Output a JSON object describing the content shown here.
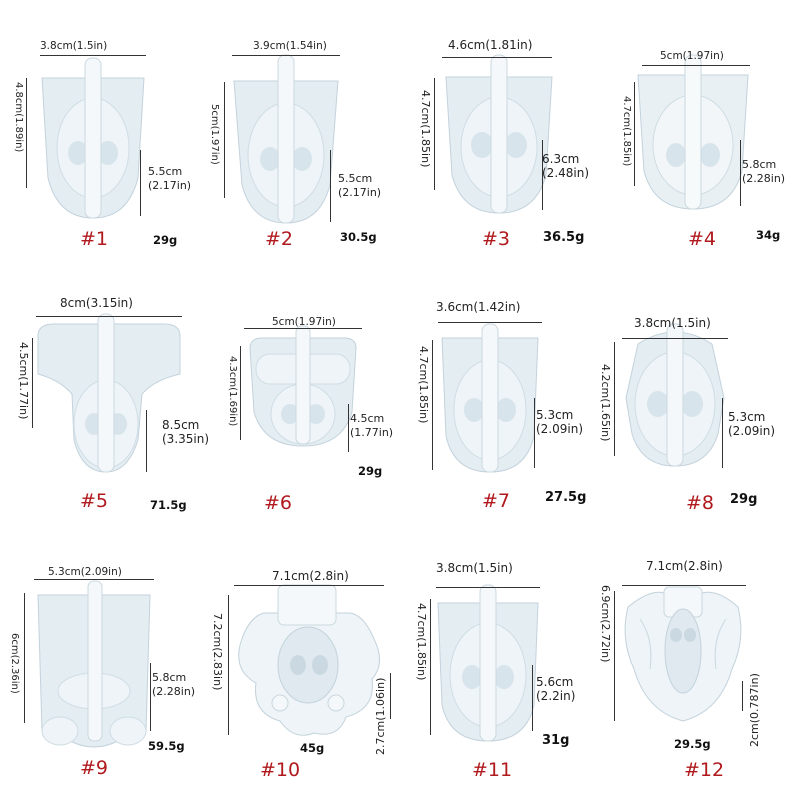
{
  "colors": {
    "label": "#b0191e",
    "mold": "#dfe9ef",
    "mold_edge": "#b9cbd6"
  },
  "products": [
    {
      "label": "#1",
      "weight": "29g",
      "width": "3.8cm(1.5in)",
      "height": "4.8cm(1.89in)",
      "depth_cm": "5.5cm",
      "depth_in": "(2.17in)"
    },
    {
      "label": "#2",
      "weight": "30.5g",
      "width": "3.9cm(1.54in)",
      "height": "5cm(1.97in)",
      "depth_cm": "5.5cm",
      "depth_in": "(2.17in)"
    },
    {
      "label": "#3",
      "weight": "36.5g",
      "width": "4.6cm(1.81in)",
      "height": "4.7cm(1.85in)",
      "depth_cm": "6.3cm",
      "depth_in": "(2.48in)"
    },
    {
      "label": "#4",
      "weight": "34g",
      "width": "5cm(1.97in)",
      "height": "4.7cm(1.85in)",
      "depth_cm": "5.8cm",
      "depth_in": "(2.28in)"
    },
    {
      "label": "#5",
      "weight": "71.5g",
      "width": "8cm(3.15in)",
      "height": "4.5cm(1.77in)",
      "depth_cm": "8.5cm",
      "depth_in": "(3.35in)"
    },
    {
      "label": "#6",
      "weight": "29g",
      "width": "5cm(1.97in)",
      "height": "4.3cm(1.69in)",
      "depth_cm": "4.5cm",
      "depth_in": "(1.77in)"
    },
    {
      "label": "#7",
      "weight": "27.5g",
      "width": "3.6cm(1.42in)",
      "height": "4.7cm(1.85in)",
      "depth_cm": "5.3cm",
      "depth_in": "(2.09in)"
    },
    {
      "label": "#8",
      "weight": "29g",
      "width": "3.8cm(1.5in)",
      "height": "4.2cm(1.65in)",
      "depth_cm": "5.3cm",
      "depth_in": "(2.09in)"
    },
    {
      "label": "#9",
      "weight": "59.5g",
      "width": "5.3cm(2.09in)",
      "height": "6cm(2.36in)",
      "depth_cm": "5.8cm",
      "depth_in": "(2.28in)"
    },
    {
      "label": "#10",
      "weight": "45g",
      "width": "7.1cm(2.8in)",
      "height": "7.2cm(2.83in)",
      "depth": "2.7cm(1.06in)"
    },
    {
      "label": "#11",
      "weight": "31g",
      "width": "3.8cm(1.5in)",
      "height": "4.7cm(1.85in)",
      "depth_cm": "5.6cm",
      "depth_in": "(2.2in)"
    },
    {
      "label": "#12",
      "weight": "29.5g",
      "width": "7.1cm(2.8in)",
      "height": "6.9cm(2.72in)",
      "depth": "2cm(0.787in)"
    }
  ]
}
